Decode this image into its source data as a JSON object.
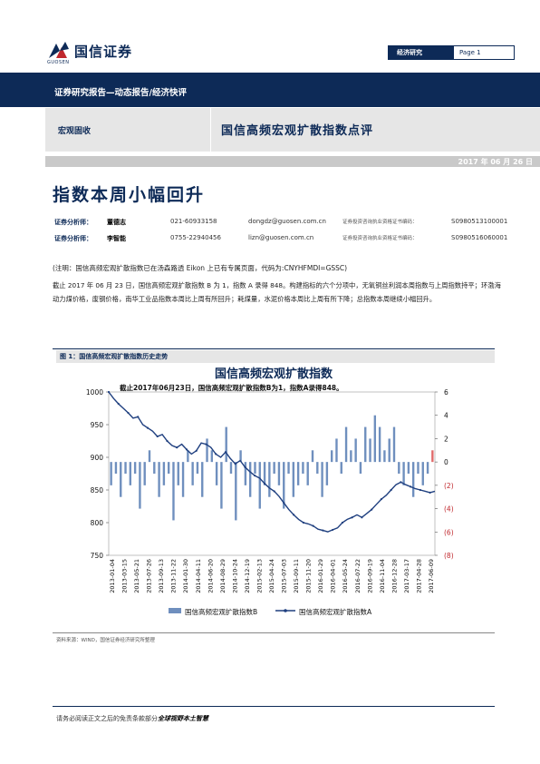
{
  "header": {
    "brand": "国信证券",
    "brand_en": "GUOSEN",
    "category": "经济研究",
    "page": "Page 1",
    "band_text": "证券研究报告—动态报告/经济快评",
    "section": "宏观固收",
    "report_title": "国信高频宏观扩散指数点评",
    "date": "2017 年 06 月 26 日"
  },
  "headline": "指数本周小幅回升",
  "analysts": [
    {
      "label": "证券分析师：",
      "name": "董德志",
      "tel": "021-60933158",
      "email": "dongdz@guosen.com.cn",
      "cert_label": "证券投资咨询执业资格证书编码：",
      "cert_no": "S0980513100001"
    },
    {
      "label": "证券分析师：",
      "name": "李智能",
      "tel": "0755-22940456",
      "email": "lizn@guosen.com.cn",
      "cert_label": "证券投资咨询执业资格证书编码：",
      "cert_no": "S0980516060001"
    }
  ],
  "note": "(注明：国信高频宏观扩散指数已在汤森路透 Eikon 上已有专属页面，代码为:CNYHFMDI=GSSC)",
  "paragraph": "截止 2017 年 06 月 23 日，国信高频宏观扩散指数 B 为 1，指数 A 录得 848。构建指标的六个分项中，无氧铜丝利润本周指数与上周指数持平；环渤海动力煤价格，废钢价格，南华工业品指数本周比上周有所回升；耗煤量，水泥价格本周比上周有所下降；总指数本周继续小幅回升。",
  "figure": {
    "title": "图 1：国信高频宏观扩散指数历史走势",
    "source": "资料来源：WIND，国信证券经济研究所整理"
  },
  "chart_data": {
    "type": "bar+line",
    "title": "国信高频宏观扩散指数",
    "annotation": "截止2017年06月23日，国信高频宏观扩散指数B为1，指数A录得848。",
    "left_axis": {
      "ylim": [
        750,
        1000
      ],
      "ticks": [
        "750",
        "800",
        "850",
        "900",
        "950",
        "1000"
      ]
    },
    "right_axis": {
      "ylim": [
        -8,
        6
      ],
      "ticks": [
        "(8)",
        "(6)",
        "(4)",
        "(2)",
        "0",
        "2",
        "4",
        "6"
      ]
    },
    "x_tick_labels": [
      "2013-01-04",
      "2013-03-15",
      "2013-05-21",
      "2013-07-26",
      "2013-09-13",
      "2013-11-22",
      "2014-01-30",
      "2014-04-11",
      "2014-06-20",
      "2014-08-29",
      "2014-10-24",
      "2014-12-19",
      "2015-02-13",
      "2015-04-24",
      "2015-07-03",
      "2015-09-11",
      "2015-11-20",
      "2016-01-29",
      "2016-04-01",
      "2016-05-24",
      "2016-07-22",
      "2016-09-19",
      "2016-11-04",
      "2016-12-28",
      "2017-03-17",
      "2017-04-28",
      "2017-06-09"
    ],
    "legend": {
      "placement": "bottom",
      "entries": [
        "国信高频宏观扩散指数B",
        "国信高频宏观扩散指数A"
      ]
    },
    "series": [
      {
        "name": "国信高频宏观扩散指数A",
        "kind": "line",
        "axis": "left",
        "color": "#1f3f7f",
        "values": [
          1000,
          990,
          982,
          975,
          968,
          960,
          962,
          950,
          945,
          940,
          932,
          935,
          925,
          918,
          915,
          920,
          912,
          905,
          910,
          922,
          920,
          915,
          905,
          900,
          908,
          898,
          890,
          895,
          885,
          878,
          872,
          868,
          860,
          853,
          848,
          840,
          830,
          820,
          812,
          805,
          800,
          798,
          795,
          790,
          788,
          786,
          789,
          792,
          800,
          805,
          808,
          812,
          808,
          814,
          820,
          828,
          836,
          842,
          850,
          858,
          862,
          858,
          855,
          852,
          850,
          848,
          846,
          848
        ]
      },
      {
        "name": "国信高频宏观扩散指数B",
        "kind": "bar",
        "axis": "right",
        "color": "#6f8fbe",
        "values": [
          -2,
          -1,
          -3,
          -1,
          -2,
          -1,
          -4,
          -2,
          1,
          -1,
          -3,
          -2,
          -1,
          -5,
          -2,
          -3,
          1,
          -2,
          -1,
          -3,
          2,
          1,
          -2,
          -4,
          3,
          -1,
          -5,
          1,
          -2,
          -3,
          -1,
          -4,
          -2,
          -3,
          -1,
          -2,
          -4,
          -1,
          -3,
          -2,
          -1,
          -2,
          1,
          -1,
          -3,
          -2,
          1,
          2,
          -1,
          3,
          1,
          2,
          -1,
          3,
          2,
          4,
          3,
          1,
          2,
          3,
          -1,
          -2,
          -1,
          -3,
          -1,
          -2,
          -1,
          1
        ]
      }
    ]
  }
}
